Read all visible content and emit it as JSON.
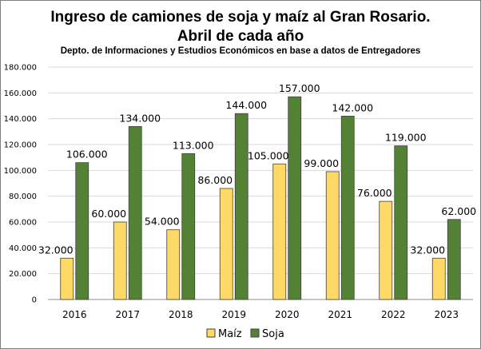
{
  "chart_data": {
    "type": "bar",
    "title": "Ingreso de camiones de soja y maíz al Gran Rosario.",
    "title_line2": "Abril de cada año",
    "subtitle": "Depto. de Informaciones y Estudios Económicos en base a datos de Entregadores",
    "categories": [
      "2016",
      "2017",
      "2018",
      "2019",
      "2020",
      "2021",
      "2022",
      "2023"
    ],
    "series": [
      {
        "name": "Maíz",
        "color": "#ffd966",
        "values": [
          32000,
          60000,
          54000,
          86000,
          105000,
          99000,
          76000,
          32000
        ],
        "labels": [
          "32.000",
          "60.000",
          "54.000",
          "86.000",
          "105.000",
          "99.000",
          "76.000",
          "32.000"
        ]
      },
      {
        "name": "Soja",
        "color": "#548235",
        "values": [
          106000,
          134000,
          113000,
          144000,
          157000,
          142000,
          119000,
          62000
        ],
        "labels": [
          "106.000",
          "134.000",
          "113.000",
          "144.000",
          "157.000",
          "142.000",
          "119.000",
          "62.000"
        ]
      }
    ],
    "ylim": [
      0,
      180000
    ],
    "yticks": [
      0,
      20000,
      40000,
      60000,
      80000,
      100000,
      120000,
      140000,
      160000,
      180000
    ],
    "ytick_labels": [
      "0",
      "20.000",
      "40.000",
      "60.000",
      "80.000",
      "100.000",
      "120.000",
      "140.000",
      "160.000",
      "180.000"
    ],
    "xlabel": "",
    "ylabel": "",
    "grid": true,
    "legend_position": "bottom"
  }
}
